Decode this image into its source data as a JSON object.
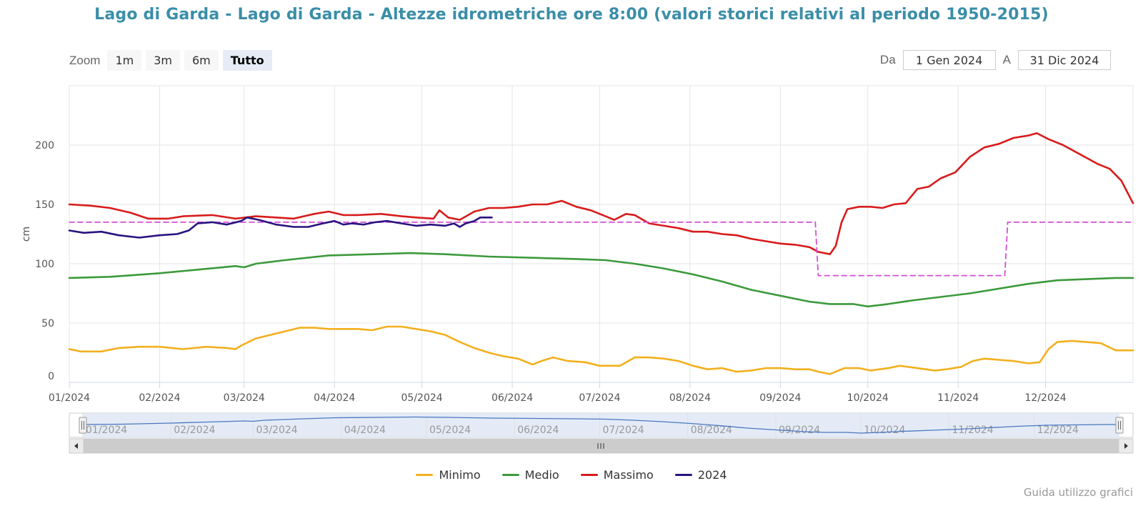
{
  "title": "Lago di Garda - Lago di Garda - Altezze idrometriche ore 8:00 (valori storici relativi al periodo 1950-2015)",
  "zoom": {
    "label": "Zoom",
    "buttons": [
      "1m",
      "3m",
      "6m",
      "Tutto"
    ],
    "active": "Tutto"
  },
  "range": {
    "from_label": "Da",
    "from_value": "1 Gen 2024",
    "to_label": "A",
    "to_value": "31 Dic 2024"
  },
  "footer_link": "Guida utilizzo grafici",
  "chart_data": {
    "type": "line",
    "ylabel": "cm",
    "xlabel": "",
    "ylim": [
      0,
      250
    ],
    "yticks": [
      0,
      50,
      100,
      150,
      200
    ],
    "xlim": [
      1,
      366
    ],
    "grid": true,
    "legend_position": "bottom",
    "month_labels": [
      "01/2024",
      "02/2024",
      "03/2024",
      "04/2024",
      "05/2024",
      "06/2024",
      "07/2024",
      "08/2024",
      "09/2024",
      "10/2024",
      "11/2024",
      "12/2024"
    ],
    "month_start_days": [
      1,
      32,
      61,
      92,
      122,
      153,
      183,
      214,
      245,
      275,
      306,
      336
    ],
    "series": [
      {
        "name": "Minimo",
        "color": "#f2b01e",
        "style": "solid",
        "points": [
          [
            1,
            28
          ],
          [
            5,
            26
          ],
          [
            12,
            26
          ],
          [
            18,
            29
          ],
          [
            25,
            30
          ],
          [
            32,
            30
          ],
          [
            40,
            28
          ],
          [
            48,
            30
          ],
          [
            55,
            29
          ],
          [
            58,
            28
          ],
          [
            60,
            31
          ],
          [
            65,
            37
          ],
          [
            70,
            40
          ],
          [
            75,
            43
          ],
          [
            80,
            46
          ],
          [
            85,
            46
          ],
          [
            90,
            45
          ],
          [
            100,
            45
          ],
          [
            105,
            44
          ],
          [
            110,
            47
          ],
          [
            115,
            47
          ],
          [
            120,
            45
          ],
          [
            125,
            43
          ],
          [
            130,
            40
          ],
          [
            135,
            34
          ],
          [
            140,
            29
          ],
          [
            145,
            25
          ],
          [
            150,
            22
          ],
          [
            155,
            20
          ],
          [
            160,
            15
          ],
          [
            163,
            18
          ],
          [
            167,
            21
          ],
          [
            172,
            18
          ],
          [
            178,
            17
          ],
          [
            183,
            14
          ],
          [
            190,
            14
          ],
          [
            195,
            21
          ],
          [
            200,
            21
          ],
          [
            205,
            20
          ],
          [
            210,
            18
          ],
          [
            215,
            14
          ],
          [
            220,
            11
          ],
          [
            225,
            12
          ],
          [
            230,
            9
          ],
          [
            235,
            10
          ],
          [
            240,
            12
          ],
          [
            245,
            12
          ],
          [
            250,
            11
          ],
          [
            255,
            11
          ],
          [
            258,
            9
          ],
          [
            262,
            7
          ],
          [
            267,
            12
          ],
          [
            272,
            12
          ],
          [
            276,
            10
          ],
          [
            282,
            12
          ],
          [
            286,
            14
          ],
          [
            292,
            12
          ],
          [
            298,
            10
          ],
          [
            302,
            11
          ],
          [
            307,
            13
          ],
          [
            311,
            18
          ],
          [
            315,
            20
          ],
          [
            320,
            19
          ],
          [
            325,
            18
          ],
          [
            330,
            16
          ],
          [
            334,
            17
          ],
          [
            337,
            28
          ],
          [
            340,
            34
          ],
          [
            345,
            35
          ],
          [
            350,
            34
          ],
          [
            355,
            33
          ],
          [
            360,
            27
          ],
          [
            366,
            27
          ]
        ]
      },
      {
        "name": "Medio",
        "color": "#3c9a3c",
        "style": "solid",
        "points": [
          [
            1,
            88
          ],
          [
            15,
            89
          ],
          [
            32,
            92
          ],
          [
            45,
            95
          ],
          [
            58,
            98
          ],
          [
            61,
            97
          ],
          [
            65,
            100
          ],
          [
            75,
            103
          ],
          [
            90,
            107
          ],
          [
            105,
            108
          ],
          [
            118,
            109
          ],
          [
            130,
            108
          ],
          [
            145,
            106
          ],
          [
            160,
            105
          ],
          [
            175,
            104
          ],
          [
            185,
            103
          ],
          [
            195,
            100
          ],
          [
            205,
            96
          ],
          [
            215,
            91
          ],
          [
            225,
            85
          ],
          [
            235,
            78
          ],
          [
            245,
            73
          ],
          [
            255,
            68
          ],
          [
            262,
            66
          ],
          [
            270,
            66
          ],
          [
            275,
            64
          ],
          [
            282,
            66
          ],
          [
            290,
            69
          ],
          [
            300,
            72
          ],
          [
            310,
            75
          ],
          [
            320,
            79
          ],
          [
            330,
            83
          ],
          [
            340,
            86
          ],
          [
            350,
            87
          ],
          [
            360,
            88
          ],
          [
            366,
            88
          ]
        ]
      },
      {
        "name": "Massimo",
        "color": "#d71c1c",
        "style": "solid",
        "points": [
          [
            1,
            150
          ],
          [
            8,
            149
          ],
          [
            15,
            147
          ],
          [
            22,
            143
          ],
          [
            28,
            138
          ],
          [
            35,
            138
          ],
          [
            40,
            140
          ],
          [
            50,
            141
          ],
          [
            58,
            138
          ],
          [
            65,
            140
          ],
          [
            72,
            139
          ],
          [
            78,
            138
          ],
          [
            85,
            142
          ],
          [
            90,
            144
          ],
          [
            95,
            141
          ],
          [
            100,
            141
          ],
          [
            108,
            142
          ],
          [
            115,
            140
          ],
          [
            120,
            139
          ],
          [
            126,
            138
          ],
          [
            128,
            145
          ],
          [
            131,
            139
          ],
          [
            135,
            137
          ],
          [
            140,
            144
          ],
          [
            145,
            147
          ],
          [
            150,
            147
          ],
          [
            155,
            148
          ],
          [
            160,
            150
          ],
          [
            165,
            150
          ],
          [
            170,
            153
          ],
          [
            175,
            148
          ],
          [
            180,
            145
          ],
          [
            185,
            140
          ],
          [
            188,
            137
          ],
          [
            192,
            142
          ],
          [
            195,
            141
          ],
          [
            200,
            134
          ],
          [
            205,
            132
          ],
          [
            210,
            130
          ],
          [
            215,
            127
          ],
          [
            220,
            127
          ],
          [
            225,
            125
          ],
          [
            230,
            124
          ],
          [
            235,
            121
          ],
          [
            240,
            119
          ],
          [
            245,
            117
          ],
          [
            250,
            116
          ],
          [
            255,
            114
          ],
          [
            258,
            110
          ],
          [
            262,
            108
          ],
          [
            264,
            115
          ],
          [
            266,
            135
          ],
          [
            268,
            146
          ],
          [
            272,
            148
          ],
          [
            276,
            148
          ],
          [
            280,
            147
          ],
          [
            284,
            150
          ],
          [
            288,
            151
          ],
          [
            292,
            163
          ],
          [
            296,
            165
          ],
          [
            300,
            172
          ],
          [
            305,
            177
          ],
          [
            310,
            190
          ],
          [
            315,
            198
          ],
          [
            320,
            201
          ],
          [
            325,
            206
          ],
          [
            330,
            208
          ],
          [
            333,
            210
          ],
          [
            337,
            205
          ],
          [
            342,
            200
          ],
          [
            348,
            192
          ],
          [
            354,
            184
          ],
          [
            358,
            180
          ],
          [
            362,
            170
          ],
          [
            366,
            151
          ]
        ]
      },
      {
        "name": "",
        "color": "#d54fd6",
        "style": "dashed",
        "points": [
          [
            1,
            135
          ],
          [
            257,
            135
          ],
          [
            258,
            90
          ],
          [
            322,
            90
          ],
          [
            323,
            135
          ],
          [
            366,
            135
          ]
        ]
      },
      {
        "name": "2024",
        "color": "#2a137f",
        "style": "solid",
        "points": [
          [
            1,
            128
          ],
          [
            6,
            126
          ],
          [
            12,
            127
          ],
          [
            18,
            124
          ],
          [
            25,
            122
          ],
          [
            32,
            124
          ],
          [
            38,
            125
          ],
          [
            42,
            128
          ],
          [
            45,
            134
          ],
          [
            50,
            135
          ],
          [
            55,
            133
          ],
          [
            60,
            136
          ],
          [
            62,
            139
          ],
          [
            66,
            137
          ],
          [
            72,
            133
          ],
          [
            78,
            131
          ],
          [
            83,
            131
          ],
          [
            88,
            134
          ],
          [
            92,
            136
          ],
          [
            95,
            133
          ],
          [
            98,
            134
          ],
          [
            102,
            133
          ],
          [
            106,
            135
          ],
          [
            110,
            136
          ],
          [
            115,
            134
          ],
          [
            120,
            132
          ],
          [
            125,
            133
          ],
          [
            130,
            132
          ],
          [
            133,
            134
          ],
          [
            135,
            131
          ],
          [
            137,
            134
          ],
          [
            140,
            136
          ],
          [
            142,
            139
          ],
          [
            146,
            139
          ]
        ]
      }
    ]
  }
}
